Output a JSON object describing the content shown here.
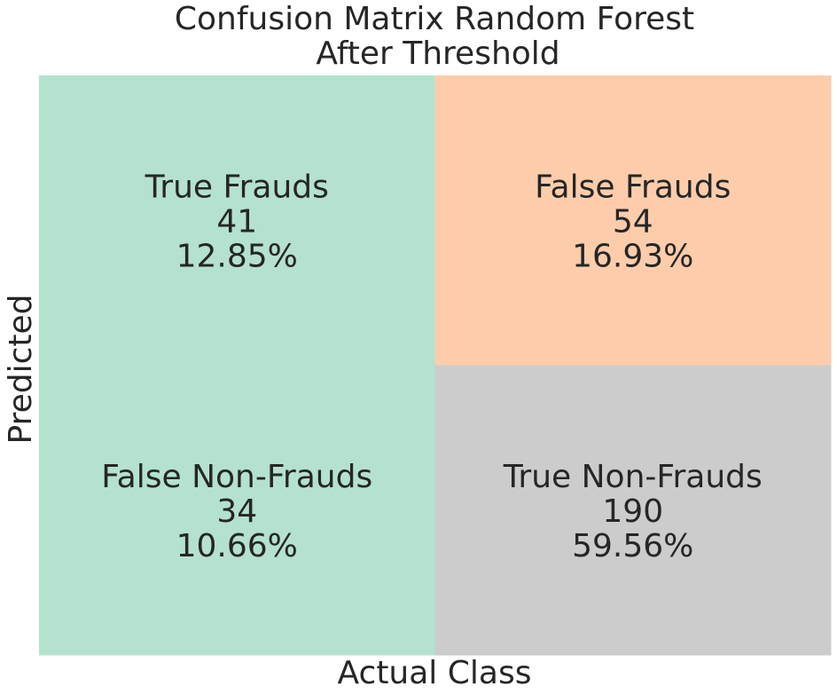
{
  "chart_data": {
    "type": "heatmap",
    "title": [
      "Confusion Matrix Random Forest",
      "After Threshold"
    ],
    "xlabel": "Actual Class",
    "ylabel": "Predicted",
    "colorbar": false,
    "cells": [
      {
        "row": 0,
        "col": 0,
        "label": "True Frauds",
        "count": "41",
        "percent": "12.85%",
        "color": "#b4e2ce"
      },
      {
        "row": 0,
        "col": 1,
        "label": "False Frauds",
        "count": "54",
        "percent": "16.93%",
        "color": "#fdcdab"
      },
      {
        "row": 1,
        "col": 0,
        "label": "False Non-Frauds",
        "count": "34",
        "percent": "10.66%",
        "color": "#b4e2ce"
      },
      {
        "row": 1,
        "col": 1,
        "label": "True Non-Frauds",
        "count": "190",
        "percent": "59.56%",
        "color": "#cccccc"
      }
    ]
  }
}
